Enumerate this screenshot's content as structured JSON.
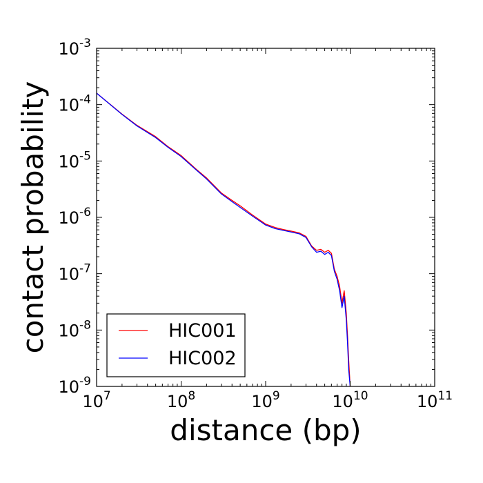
{
  "chart_data": {
    "type": "line",
    "xlabel": "distance (bp)",
    "ylabel": "contact probability",
    "xscale": "log",
    "yscale": "log",
    "xlim": [
      10000000.0,
      100000000000.0
    ],
    "ylim": [
      1e-09,
      0.001
    ],
    "x_ticks": [
      {
        "value": 10000000.0,
        "base": "10",
        "exp": "7"
      },
      {
        "value": 100000000.0,
        "base": "10",
        "exp": "8"
      },
      {
        "value": 1000000000.0,
        "base": "10",
        "exp": "9"
      },
      {
        "value": 10000000000.0,
        "base": "10",
        "exp": "10"
      },
      {
        "value": 100000000000.0,
        "base": "10",
        "exp": "11"
      }
    ],
    "y_ticks": [
      {
        "value": 1e-09,
        "base": "10",
        "exp": "-9"
      },
      {
        "value": 1e-08,
        "base": "10",
        "exp": "-8"
      },
      {
        "value": 1e-07,
        "base": "10",
        "exp": "-7"
      },
      {
        "value": 1e-06,
        "base": "10",
        "exp": "-6"
      },
      {
        "value": 1e-05,
        "base": "10",
        "exp": "-5"
      },
      {
        "value": 0.0001,
        "base": "10",
        "exp": "-4"
      },
      {
        "value": 0.001,
        "base": "10",
        "exp": "-3"
      }
    ],
    "grid": false,
    "legend_position": "lower-left",
    "series": [
      {
        "name": "HIC001",
        "color": "#ff0000",
        "x": [
          10000000.0,
          20000000.0,
          30000000.0,
          50000000.0,
          70000000.0,
          100000000.0,
          150000000.0,
          200000000.0,
          300000000.0,
          400000000.0,
          500000000.0,
          700000000.0,
          1000000000.0,
          1300000000.0,
          1600000000.0,
          2000000000.0,
          2500000000.0,
          3000000000.0,
          3500000000.0,
          4000000000.0,
          4500000000.0,
          5000000000.0,
          5500000000.0,
          6000000000.0,
          6500000000.0,
          7000000000.0,
          7500000000.0,
          8000000000.0,
          8500000000.0,
          9000000000.0,
          9300000000.0,
          9600000000.0,
          10000000000.0
        ],
        "y": [
          0.00016,
          6.8e-05,
          4.3e-05,
          2.7e-05,
          1.8e-05,
          1.25e-05,
          7.2e-06,
          5e-06,
          2.7e-06,
          2e-06,
          1.6e-06,
          1.1e-06,
          7.6e-07,
          6.6e-07,
          6.1e-07,
          5.7e-07,
          5.3e-07,
          4.6e-07,
          3.1e-07,
          2.6e-07,
          2.7e-07,
          2.4e-07,
          2.6e-07,
          2.3e-07,
          1.2e-07,
          9e-08,
          6e-08,
          3e-08,
          5e-08,
          2e-08,
          8e-09,
          3e-09,
          1e-09
        ]
      },
      {
        "name": "HIC002",
        "color": "#0000ff",
        "x": [
          10000000.0,
          20000000.0,
          30000000.0,
          50000000.0,
          70000000.0,
          100000000.0,
          150000000.0,
          200000000.0,
          300000000.0,
          400000000.0,
          500000000.0,
          700000000.0,
          1000000000.0,
          1300000000.0,
          1600000000.0,
          2000000000.0,
          2500000000.0,
          3000000000.0,
          3500000000.0,
          4000000000.0,
          4500000000.0,
          5000000000.0,
          5500000000.0,
          6000000000.0,
          6500000000.0,
          7000000000.0,
          7500000000.0,
          8000000000.0,
          8500000000.0,
          9000000000.0,
          9300000000.0,
          9600000000.0,
          10000000000.0
        ],
        "y": [
          0.00016,
          6.7e-05,
          4.2e-05,
          2.6e-05,
          1.75e-05,
          1.2e-05,
          7e-06,
          4.8e-06,
          2.6e-06,
          1.9e-06,
          1.5e-06,
          1.05e-06,
          7.3e-07,
          6.3e-07,
          5.9e-07,
          5.5e-07,
          5.1e-07,
          4.4e-07,
          3e-07,
          2.4e-07,
          2.5e-07,
          2.2e-07,
          2.4e-07,
          2.1e-07,
          1.1e-07,
          8e-08,
          5e-08,
          2.5e-08,
          4e-08,
          1.5e-08,
          6e-09,
          2e-09,
          1e-09
        ]
      }
    ]
  }
}
